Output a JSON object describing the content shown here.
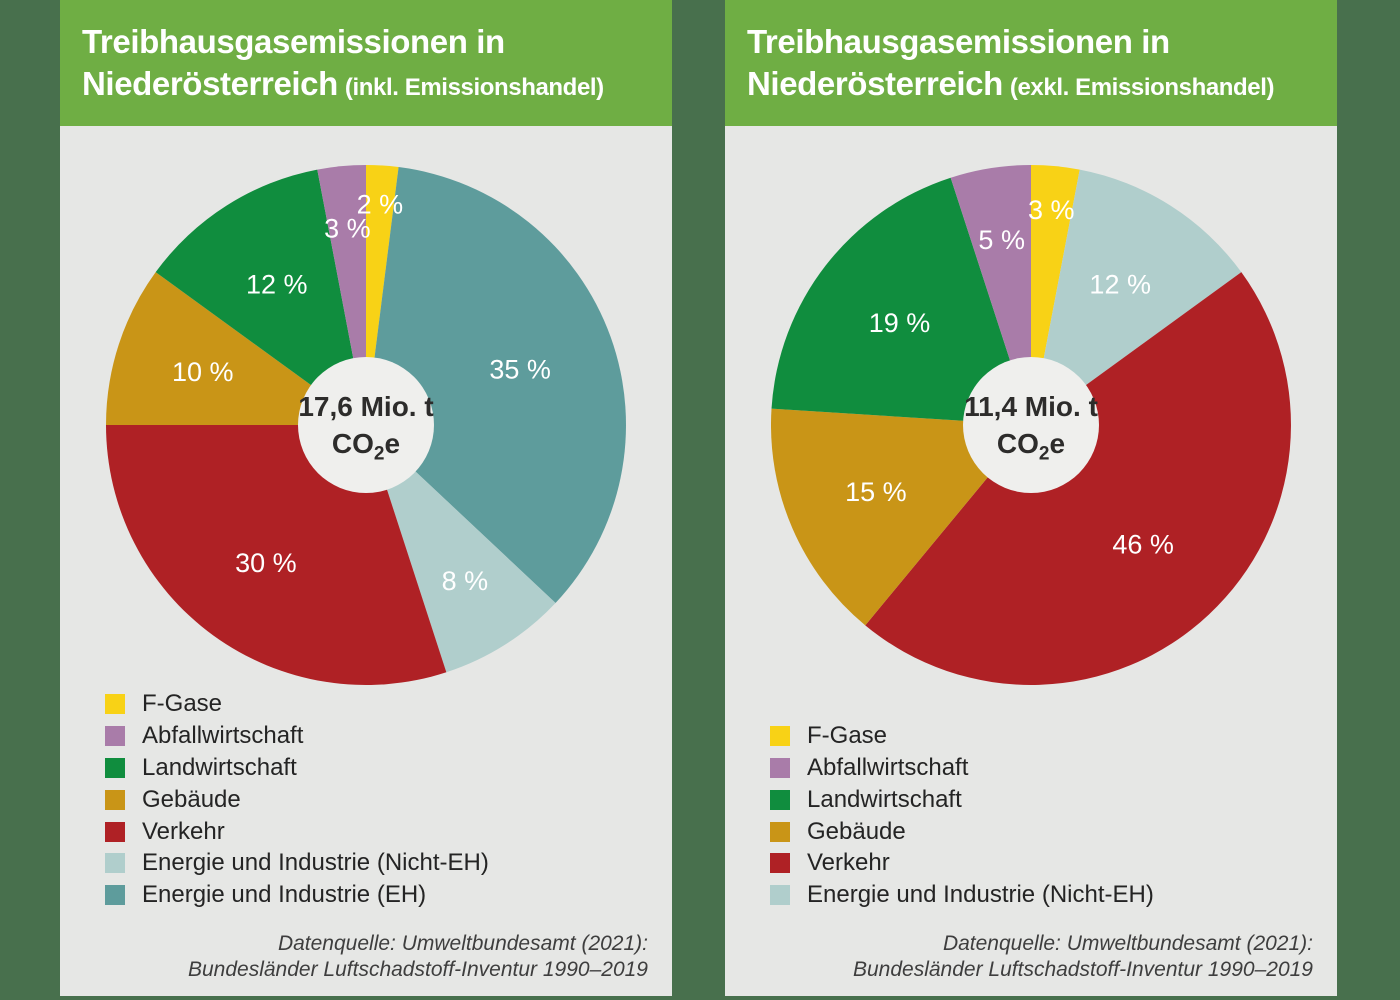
{
  "colors": {
    "page_bg": "#48704D",
    "header_bg": "#6FAE44",
    "card_bg": "#E6E7E5",
    "center_circle": "#EFEFED",
    "percent_label_text": "#FFFFFF",
    "legend_text": "#242424",
    "footer_text": "#3E3E3E",
    "title_text": "#FFFFFF"
  },
  "cards": [
    {
      "title_line1": "Treibhausgasemissionen in",
      "title_line2": "Niederösterreich",
      "title_suffix": "(inkl. Emissionshandel)",
      "center_line1": "17,6 Mio. t",
      "unit_prefix": "CO",
      "unit_sub": "2",
      "unit_suffix": "e",
      "legend": [
        {
          "label": "F-Gase",
          "color": "#F8D216"
        },
        {
          "label": "Abfallwirtschaft",
          "color": "#A97CA9"
        },
        {
          "label": "Landwirtschaft",
          "color": "#108D3E"
        },
        {
          "label": "Gebäude",
          "color": "#C99517"
        },
        {
          "label": "Verkehr",
          "color": "#AF2125"
        },
        {
          "label": "Energie und Industrie (Nicht-EH)",
          "color": "#B0CECC"
        },
        {
          "label": "Energie und Industrie (EH)",
          "color": "#5E9C9C"
        }
      ],
      "footer_line1": "Datenquelle: Umweltbundesamt (2021):",
      "footer_line2": "Bundesländer Luftschadstoff-Inventur 1990–2019"
    },
    {
      "title_line1": "Treibhausgasemissionen in",
      "title_line2": "Niederösterreich",
      "title_suffix": "(exkl. Emissionshandel)",
      "center_line1": "11,4 Mio. t",
      "unit_prefix": "CO",
      "unit_sub": "2",
      "unit_suffix": "e",
      "legend": [
        {
          "label": "F-Gase",
          "color": "#F8D216"
        },
        {
          "label": "Abfallwirtschaft",
          "color": "#A97CA9"
        },
        {
          "label": "Landwirtschaft",
          "color": "#108D3E"
        },
        {
          "label": "Gebäude",
          "color": "#C99517"
        },
        {
          "label": "Verkehr",
          "color": "#AF2125"
        },
        {
          "label": "Energie und Industrie (Nicht-EH)",
          "color": "#B0CECC"
        }
      ],
      "footer_line1": "Datenquelle: Umweltbundesamt (2021):",
      "footer_line2": "Bundesländer Luftschadstoff-Inventur 1990–2019"
    }
  ],
  "chart_data": [
    {
      "type": "pie",
      "title": "Treibhausgasemissionen in Niederösterreich (inkl. Emissionshandel)",
      "center_label": "17,6 Mio. t CO2e",
      "total_label_unit": "Mio. t CO2e",
      "start_angle_deg": 0,
      "direction": "clockwise",
      "donut_hole_ratio": 0.26,
      "label_suffix": " %",
      "slices": [
        {
          "label": "F-Gase",
          "value": 2,
          "color": "#F8D216",
          "label_r": 0.85
        },
        {
          "label": "Energie und Industrie (EH)",
          "value": 35,
          "color": "#5E9C9C",
          "label_r": 0.63
        },
        {
          "label": "Energie und Industrie (Nicht-EH)",
          "value": 8,
          "color": "#B0CECC",
          "label_r": 0.71
        },
        {
          "label": "Verkehr",
          "value": 30,
          "color": "#AF2125",
          "label_r": 0.655
        },
        {
          "label": "Gebäude",
          "value": 10,
          "color": "#C99517",
          "label_r": 0.66
        },
        {
          "label": "Landwirtschaft",
          "value": 12,
          "color": "#108D3E",
          "label_r": 0.64
        },
        {
          "label": "Abfallwirtschaft",
          "value": 3,
          "color": "#A97CA9",
          "label_r": 0.76
        }
      ]
    },
    {
      "type": "pie",
      "title": "Treibhausgasemissionen in Niederösterreich (exkl. Emissionshandel)",
      "center_label": "11,4 Mio. t CO2e",
      "total_label_unit": "Mio. t CO2e",
      "start_angle_deg": 0,
      "direction": "clockwise",
      "donut_hole_ratio": 0.26,
      "label_suffix": " %",
      "slices": [
        {
          "label": "F-Gase",
          "value": 3,
          "color": "#F8D216",
          "label_r": 0.83
        },
        {
          "label": "Energie und Industrie (Nicht-EH)",
          "value": 12,
          "color": "#B0CECC",
          "label_r": 0.64
        },
        {
          "label": "Verkehr",
          "value": 46,
          "color": "#AF2125",
          "label_r": 0.63
        },
        {
          "label": "Gebäude",
          "value": 15,
          "color": "#C99517",
          "label_r": 0.65
        },
        {
          "label": "Landwirtschaft",
          "value": 19,
          "color": "#108D3E",
          "label_r": 0.64
        },
        {
          "label": "Abfallwirtschaft",
          "value": 5,
          "color": "#A97CA9",
          "label_r": 0.72
        }
      ]
    }
  ]
}
